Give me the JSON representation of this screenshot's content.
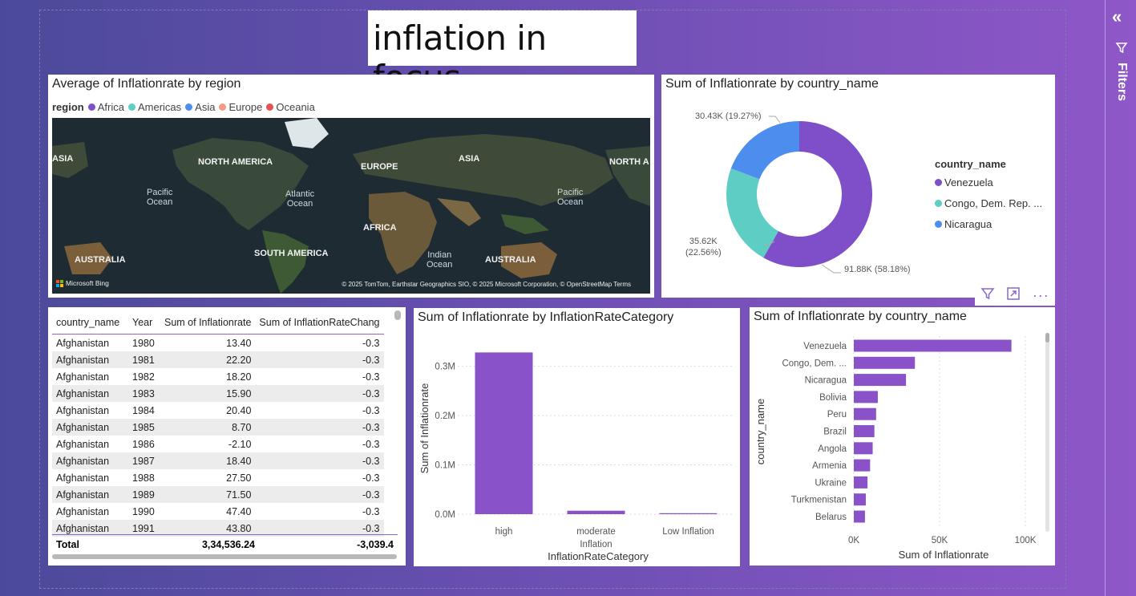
{
  "page": {
    "title": "inflation in focus"
  },
  "filters": {
    "label": "Filters",
    "collapse_icon": "double-chevron-left-icon",
    "filter_icon": "funnel-icon"
  },
  "map_visual": {
    "title": "Average of Inflationrate by region",
    "legend_title": "region",
    "legend": [
      {
        "label": "Africa",
        "color": "#7e4fc8"
      },
      {
        "label": "Americas",
        "color": "#5ecdc4"
      },
      {
        "label": "Asia",
        "color": "#4c8dee"
      },
      {
        "label": "Europe",
        "color": "#f59a80"
      },
      {
        "label": "Oceania",
        "color": "#e65252"
      }
    ],
    "labels": {
      "asia_left": "ASIA",
      "north_america": "NORTH AMERICA",
      "europe": "EUROPE",
      "asia": "ASIA",
      "north_right": "NORTH A",
      "pacific_left": "Pacific\nOcean",
      "atlantic": "Atlantic\nOcean",
      "pacific_right": "Pacific\nOcean",
      "africa": "AFRICA",
      "australia_left": "AUSTRALIA",
      "south_america": "SOUTH AMERICA",
      "indian": "Indian\nOcean",
      "australia_right": "AUSTRALIA"
    },
    "bing": "Microsoft Bing",
    "attribution": "© 2025 TomTom, Earthstar Geographics SIO, © 2025 Microsoft Corporation, © OpenStreetMap  Terms"
  },
  "donut_visual": {
    "title": "Sum of Inflationrate by country_name",
    "legend_title": "country_name",
    "data_labels": [
      "91.88K (58.18%)",
      "35.62K\n(22.56%)",
      "30.43K (19.27%)"
    ],
    "header_icons": [
      "filter-icon",
      "focus-mode-icon",
      "more-options-icon"
    ],
    "chart_data": {
      "type": "pie",
      "categories": [
        "Venezuela",
        "Congo, Dem. Rep. ...",
        "Nicaragua"
      ],
      "values": [
        91880,
        35620,
        30430
      ],
      "percents": [
        58.18,
        22.56,
        19.27
      ],
      "colors": [
        "#7e4fc8",
        "#5ecdc4",
        "#4c8dee"
      ]
    }
  },
  "table_visual": {
    "columns": [
      "country_name",
      "Year",
      "Sum of Inflationrate",
      "Sum of InflationRateChang"
    ],
    "rows": [
      [
        "Afghanistan",
        "1980",
        "13.40",
        "-0.3"
      ],
      [
        "Afghanistan",
        "1981",
        "22.20",
        "-0.3"
      ],
      [
        "Afghanistan",
        "1982",
        "18.20",
        "-0.3"
      ],
      [
        "Afghanistan",
        "1983",
        "15.90",
        "-0.3"
      ],
      [
        "Afghanistan",
        "1984",
        "20.40",
        "-0.3"
      ],
      [
        "Afghanistan",
        "1985",
        "8.70",
        "-0.3"
      ],
      [
        "Afghanistan",
        "1986",
        "-2.10",
        "-0.3"
      ],
      [
        "Afghanistan",
        "1987",
        "18.40",
        "-0.3"
      ],
      [
        "Afghanistan",
        "1988",
        "27.50",
        "-0.3"
      ],
      [
        "Afghanistan",
        "1989",
        "71.50",
        "-0.3"
      ],
      [
        "Afghanistan",
        "1990",
        "47.40",
        "-0.3"
      ],
      [
        "Afghanistan",
        "1991",
        "43.80",
        "-0.3"
      ]
    ],
    "total": [
      "Total",
      "",
      "3,34,536.24",
      "-3,039.4"
    ]
  },
  "column_visual": {
    "title": "Sum of Inflationrate by InflationRateCategory",
    "chart_data": {
      "type": "bar",
      "categories": [
        "high",
        "moderate\nInflation",
        "Low Inflation"
      ],
      "values": [
        328000,
        7000,
        2000
      ],
      "xlabel": "InflationRateCategory",
      "ylabel": "Sum of Inflationrate",
      "yticks": [
        "0.0M",
        "0.1M",
        "0.2M",
        "0.3M"
      ],
      "ylim": [
        0,
        340000
      ],
      "color": "#8a52c8"
    }
  },
  "hbar_visual": {
    "title": "Sum of Inflationrate by country_name",
    "chart_data": {
      "type": "bar",
      "orientation": "horizontal",
      "categories": [
        "Venezuela",
        "Congo, Dem. ...",
        "Nicaragua",
        "Bolivia",
        "Peru",
        "Brazil",
        "Angola",
        "Armenia",
        "Ukraine",
        "Turkmenistan",
        "Belarus"
      ],
      "values": [
        91880,
        35620,
        30430,
        14000,
        13000,
        12000,
        11000,
        9500,
        8000,
        7000,
        6500
      ],
      "xlabel": "Sum of Inflationrate",
      "ylabel": "country_name",
      "xticks": [
        "0K",
        "50K",
        "100K"
      ],
      "xlim": [
        0,
        105000
      ],
      "color": "#8a52c8"
    }
  }
}
